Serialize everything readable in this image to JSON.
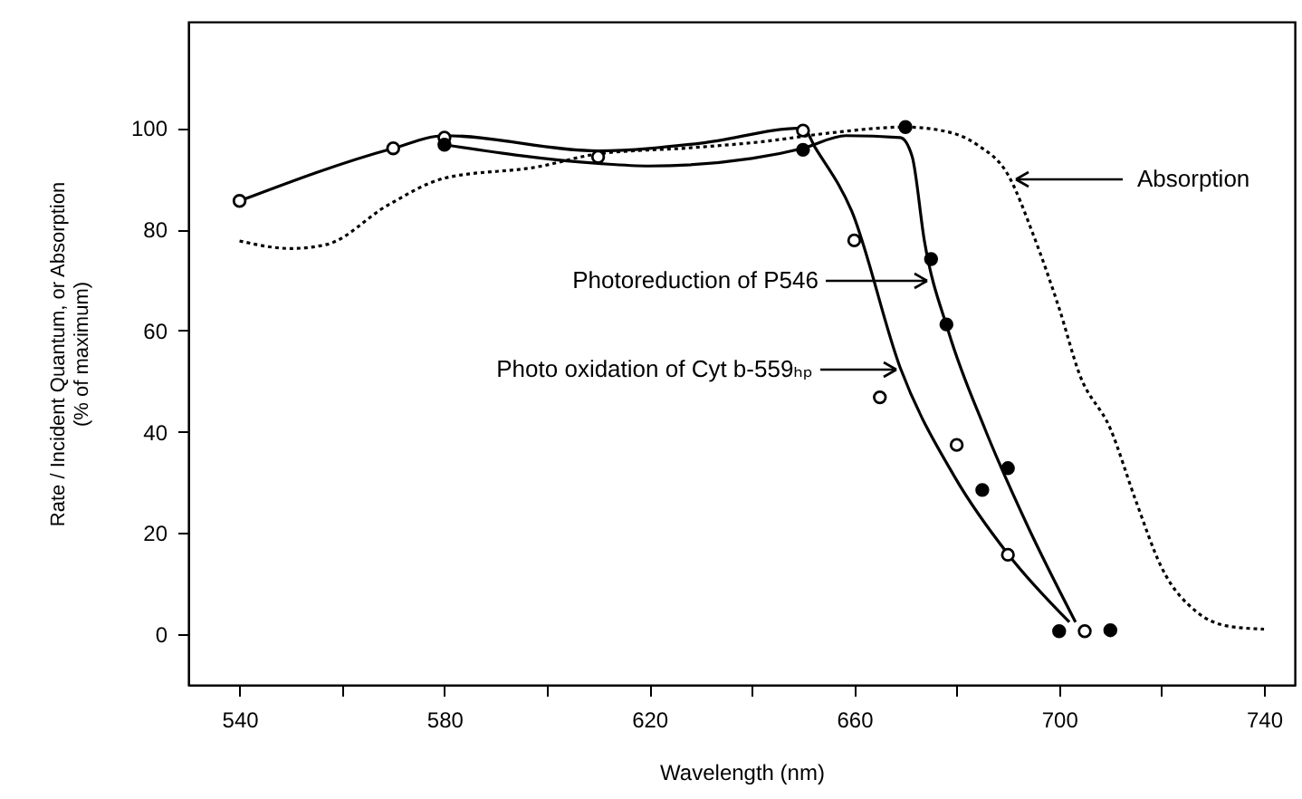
{
  "chart_data": {
    "type": "scatter",
    "xlabel": "Wavelength (nm)",
    "ylabel": "Rate / Incident Quantum, or Absorption\n(% of maximum)",
    "xlim": [
      530,
      746
    ],
    "ylim": [
      -10,
      121
    ],
    "xticks": [
      540,
      {
        "value": 560,
        "label": null
      },
      580,
      {
        "value": 600,
        "label": null
      },
      620,
      {
        "value": 640,
        "label": null
      },
      660,
      {
        "value": 680,
        "label": null
      },
      700,
      {
        "value": 720,
        "label": null
      },
      740
    ],
    "yticks": [
      0,
      20,
      40,
      60,
      80,
      100
    ],
    "grid": false,
    "series": [
      {
        "marker": "circle",
        "color": "#ffffff",
        "x": [
          540,
          570,
          580,
          610,
          650,
          660,
          665,
          680,
          690,
          705
        ],
        "values": [
          85.6,
          96,
          98.1,
          94.3,
          99.5,
          77.8,
          46.8,
          37.4,
          15.7,
          0.6
        ]
      },
      {
        "marker": "circle",
        "color": "#000000",
        "x": [
          580,
          650,
          670,
          675,
          678,
          685,
          690,
          700,
          710
        ],
        "values": [
          96.7,
          95.7,
          100.2,
          74.1,
          61.2,
          28.5,
          32.8,
          0.6,
          0.8
        ]
      },
      {
        "type": "line",
        "line_style": "solid",
        "color": "#000000",
        "x": [
          540,
          570,
          580,
          610,
          630,
          650,
          652.4,
          659.5,
          669,
          679.6,
          690.2,
          702
        ],
        "values": [
          85.6,
          96,
          98.5,
          95.5,
          97,
          100,
          96.1,
          83.6,
          52.6,
          31.1,
          15.6,
          2.4
        ]
      },
      {
        "type": "line",
        "line_style": "solid",
        "color": "#000000",
        "x": [
          580,
          610,
          620,
          640,
          650,
          658.4,
          669,
          671.3,
          673.7,
          678.4,
          685.5,
          693.8,
          703.2
        ],
        "values": [
          96.7,
          93,
          92.5,
          94,
          96,
          98.5,
          98.1,
          94.4,
          77.7,
          59.8,
          40.6,
          21.5,
          2.4
        ]
      },
      {
        "type": "line",
        "line_style": "dotted",
        "color": "#000000",
        "x": [
          540,
          550,
          557,
          569,
          580,
          598,
          610,
          628,
          642,
          655,
          670,
          676,
          684,
          690,
          695,
          700,
          704,
          710,
          715,
          720,
          727,
          733,
          740
        ],
        "values": [
          77.7,
          76.2,
          77,
          84.8,
          90.1,
          92.3,
          94.9,
          96.1,
          97.3,
          99,
          100.2,
          99.7,
          96.7,
          90.8,
          78.8,
          64.4,
          51.3,
          40.6,
          26.3,
          13.2,
          4.3,
          1.6,
          1
        ]
      }
    ],
    "annotations": [
      "Absorption",
      "Photoreduction of P546",
      "Photo oxidation of Cyt b-559ₕₚ"
    ]
  }
}
